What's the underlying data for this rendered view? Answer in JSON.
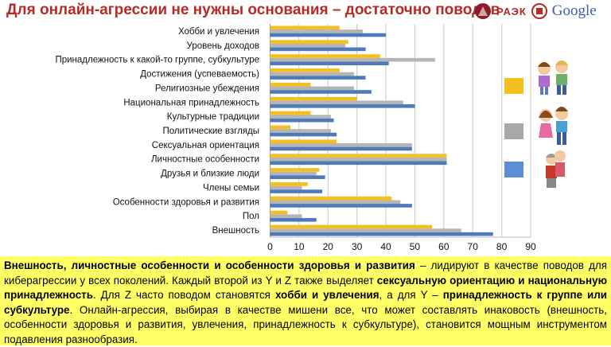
{
  "title": "Для онлайн-агрессии не нужны основания – достаточно поводов",
  "logos": {
    "raek": "РАЭК",
    "google": "Google"
  },
  "chart_data": {
    "type": "bar",
    "orientation": "horizontal",
    "categories": [
      "Хобби и увлечения",
      "Уровень доходов",
      "Принадлежность к какой-то группе, субкультуре",
      "Достижения (успеваемость)",
      "Религиозные убеждения",
      "Национальная принадлежность",
      "Культурные традиции",
      "Политические взгляды",
      "Сексуальная ориентация",
      "Личностные особенности",
      "Друзья и близкие люди",
      "Члены семьи",
      "Особенности здоровья и развития",
      "Пол",
      "Внешность"
    ],
    "series": [
      {
        "id": "yellow",
        "color": "#f5bf1f",
        "values": [
          24,
          27,
          38,
          24,
          14,
          30,
          14,
          7,
          23,
          61,
          17,
          13,
          42,
          6,
          56
        ]
      },
      {
        "id": "gray",
        "color": "#b5b5b5",
        "values": [
          32,
          26,
          57,
          29,
          29,
          46,
          21,
          21,
          49,
          61,
          16,
          11,
          45,
          11,
          66
        ]
      },
      {
        "id": "blue",
        "color": "#4f7ab8",
        "values": [
          40,
          33,
          41,
          33,
          35,
          50,
          22,
          23,
          49,
          61,
          19,
          18,
          49,
          16,
          77
        ]
      }
    ],
    "xlim": [
      0,
      90
    ],
    "xticks": [
      "0",
      "10",
      "20",
      "30",
      "40",
      "50",
      "60",
      "70",
      "80",
      "90"
    ],
    "grid": true,
    "legend": "right"
  },
  "text": {
    "p1_bold": "Внешность, личностные особенности и особенности здоровья и развития",
    "p2": " – лидируют в качестве поводов для киберагрессии у всех поколений. Каждый второй из Y и Z также выделяет ",
    "p3_bold": "сексуальную ориентацию и национальную принадлежность",
    "p4": ". Для Z часто поводом становятся ",
    "p5_bold": "хобби и увлечения",
    "p6": ", а для Y – ",
    "p7_bold": "принадлежность к группе или субкультуре",
    "p8": ". Онлайн-агрессия, выбирая в качестве мишени все, что может составлять инаковость (внешность, особенности здоровья и развития, увлечения, принадлежность к субкультуре), становится мощным инструментом подавления разнообразия."
  }
}
